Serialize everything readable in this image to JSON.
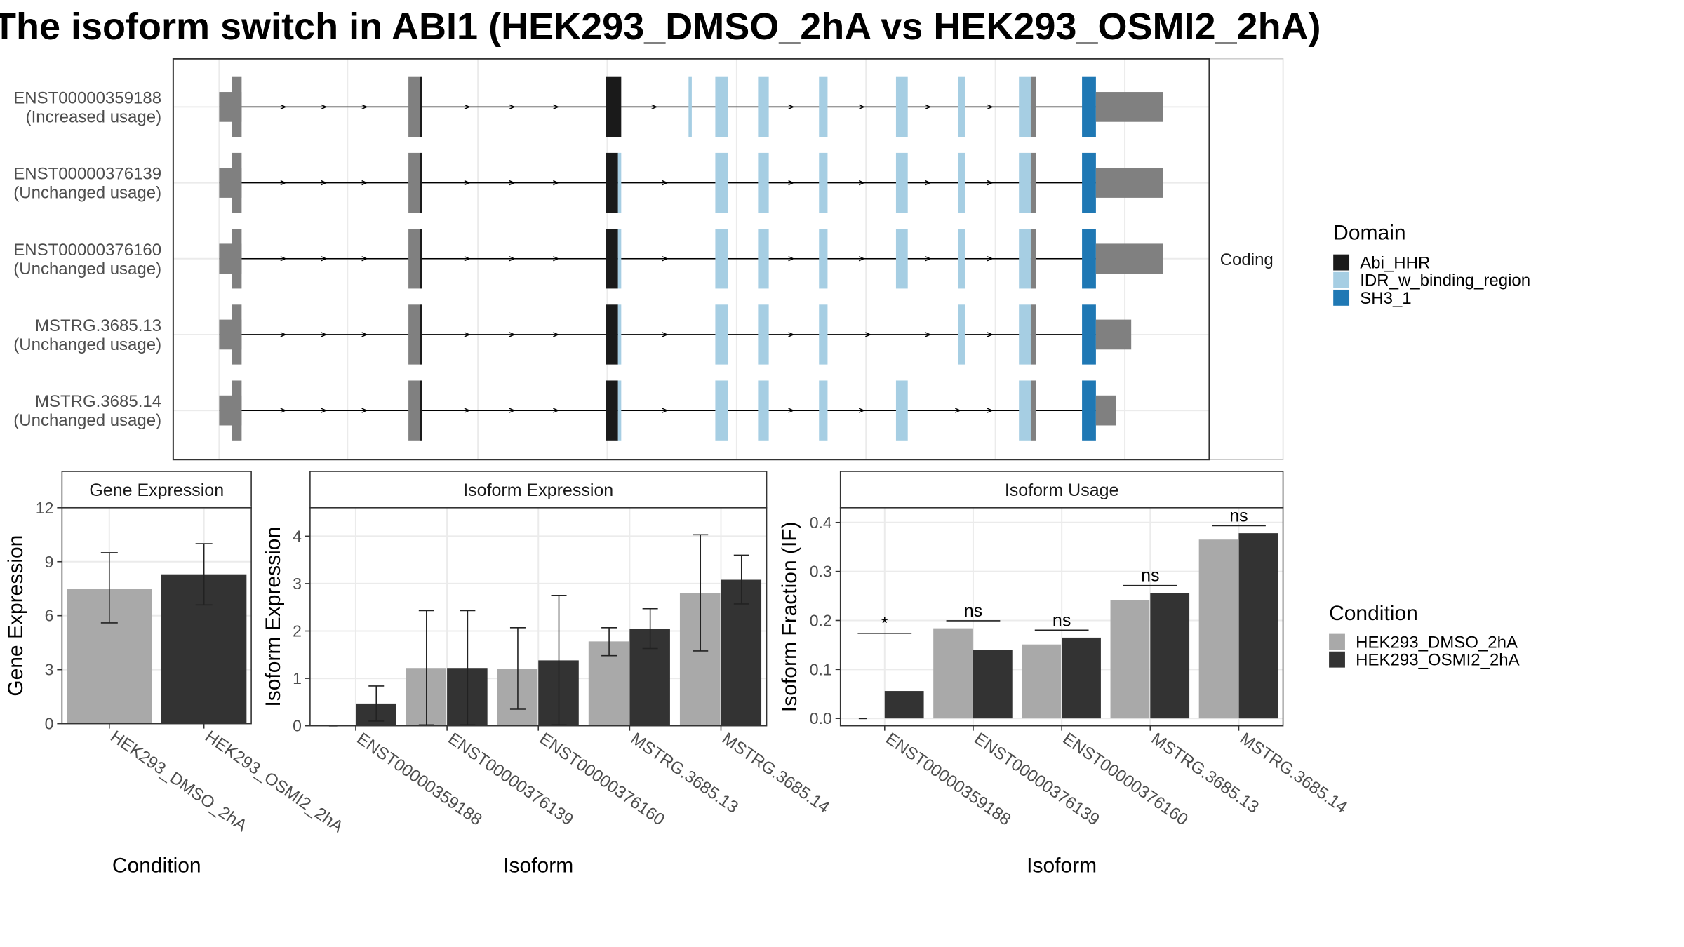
{
  "title": "The isoform switch in ABI1 (HEK293_DMSO_2hA vs HEK293_OSMI2_2hA)",
  "colors": {
    "dmso": "#a9a9a9",
    "osmi": "#333333",
    "abi_hhr": "#1a1a1a",
    "idr": "#a6cee3",
    "sh3": "#1f78b4",
    "utr": "#808080",
    "grid": "#ebebeb",
    "panel_border": "#333333",
    "strip_fill": "#ffffff"
  },
  "structure": {
    "facet_label": "Coding",
    "legend_title": "Domain",
    "legend_items": [
      {
        "label": "Abi_HHR",
        "color_key": "abi_hhr"
      },
      {
        "label": "IDR_w_binding_region",
        "color_key": "idr"
      },
      {
        "label": "SH3_1",
        "color_key": "sh3"
      }
    ],
    "transcripts": [
      {
        "id": "ENST00000359188",
        "usage": "(Increased usage)",
        "exons": [
          [
            205,
            226,
            "utr_stub"
          ],
          [
            217,
            226,
            "utr"
          ],
          [
            382,
            395,
            "abi_hhr_edge"
          ],
          [
            567,
            581,
            "abi_hhr"
          ],
          [
            644,
            647,
            "idr"
          ],
          [
            669,
            681,
            "idr"
          ],
          [
            709,
            719,
            "idr"
          ],
          [
            766,
            774,
            "idr"
          ],
          [
            838,
            849,
            "idr"
          ],
          [
            896,
            903,
            "idr"
          ],
          [
            953,
            969,
            "idr_edge"
          ],
          [
            1012,
            1025,
            "sh3"
          ],
          [
            1025,
            1088,
            "utr_tail"
          ]
        ],
        "arrows": [
          265,
          303,
          341,
          437,
          479,
          520,
          612,
          740,
          806,
          868,
          926
        ]
      },
      {
        "id": "ENST00000376139",
        "usage": "(Unchanged usage)",
        "exons": [
          [
            205,
            226,
            "utr_stub"
          ],
          [
            217,
            226,
            "utr"
          ],
          [
            382,
            395,
            "abi_hhr_edge"
          ],
          [
            567,
            581,
            "abi_hhr_idr"
          ],
          [
            669,
            681,
            "idr"
          ],
          [
            709,
            719,
            "idr"
          ],
          [
            766,
            774,
            "idr"
          ],
          [
            838,
            849,
            "idr"
          ],
          [
            896,
            903,
            "idr"
          ],
          [
            953,
            969,
            "idr_edge"
          ],
          [
            1012,
            1025,
            "sh3"
          ],
          [
            1025,
            1088,
            "utr_tail"
          ]
        ],
        "arrows": [
          265,
          303,
          341,
          437,
          479,
          520,
          622,
          740,
          806,
          868,
          926
        ]
      },
      {
        "id": "ENST00000376160",
        "usage": "(Unchanged usage)",
        "exons": [
          [
            205,
            226,
            "utr_stub"
          ],
          [
            217,
            226,
            "utr"
          ],
          [
            382,
            395,
            "abi_hhr_edge"
          ],
          [
            567,
            581,
            "abi_hhr_idr"
          ],
          [
            669,
            681,
            "idr"
          ],
          [
            709,
            719,
            "idr"
          ],
          [
            766,
            774,
            "idr"
          ],
          [
            838,
            849,
            "idr"
          ],
          [
            896,
            903,
            "idr"
          ],
          [
            953,
            969,
            "idr_edge"
          ],
          [
            1012,
            1025,
            "sh3"
          ],
          [
            1025,
            1088,
            "utr_tail"
          ]
        ],
        "arrows": [
          265,
          303,
          341,
          437,
          479,
          520,
          622,
          740,
          806,
          868,
          926
        ]
      },
      {
        "id": "MSTRG.3685.13",
        "usage": "(Unchanged usage)",
        "exons": [
          [
            205,
            226,
            "utr_stub"
          ],
          [
            217,
            226,
            "utr"
          ],
          [
            382,
            395,
            "abi_hhr_edge"
          ],
          [
            567,
            581,
            "abi_hhr_idr"
          ],
          [
            669,
            681,
            "idr"
          ],
          [
            709,
            719,
            "idr"
          ],
          [
            766,
            774,
            "idr"
          ],
          [
            896,
            903,
            "idr"
          ],
          [
            953,
            969,
            "idr_edge"
          ],
          [
            1012,
            1025,
            "sh3"
          ],
          [
            1025,
            1058,
            "utr_tail"
          ]
        ],
        "arrows": [
          265,
          303,
          341,
          437,
          479,
          520,
          622,
          740,
          812,
          868,
          926
        ]
      },
      {
        "id": "MSTRG.3685.14",
        "usage": "(Unchanged usage)",
        "exons": [
          [
            205,
            226,
            "utr_stub"
          ],
          [
            217,
            226,
            "utr"
          ],
          [
            382,
            395,
            "abi_hhr_edge"
          ],
          [
            567,
            581,
            "abi_hhr_idr"
          ],
          [
            669,
            681,
            "idr"
          ],
          [
            709,
            719,
            "idr"
          ],
          [
            766,
            774,
            "idr"
          ],
          [
            838,
            849,
            "idr"
          ],
          [
            953,
            969,
            "idr_edge"
          ],
          [
            1012,
            1025,
            "sh3"
          ],
          [
            1025,
            1044,
            "utr_tail"
          ]
        ],
        "arrows": [
          265,
          303,
          341,
          437,
          479,
          520,
          622,
          740,
          806,
          896,
          926
        ]
      }
    ]
  },
  "bottom_legend": {
    "title": "Condition",
    "items": [
      {
        "label": "HEK293_DMSO_2hA",
        "color_key": "dmso"
      },
      {
        "label": "HEK293_OSMI2_2hA",
        "color_key": "osmi"
      }
    ]
  },
  "chart_data": [
    {
      "type": "bar",
      "title": "Gene Expression",
      "xlabel": "Condition",
      "ylabel": "Gene Expression",
      "ylim": [
        0,
        12
      ],
      "yticks": [
        0,
        3,
        6,
        9,
        12
      ],
      "categories": [
        "HEK293_DMSO_2hA",
        "HEK293_OSMI2_2hA"
      ],
      "series": [
        {
          "values": [
            7.5,
            8.3
          ],
          "err_low": [
            5.6,
            6.6
          ],
          "err_high": [
            9.5,
            10.0
          ],
          "color_key": [
            "dmso",
            "osmi"
          ]
        }
      ]
    },
    {
      "type": "bar",
      "title": "Isoform Expression",
      "xlabel": "Isoform",
      "ylabel": "Isoform Expression",
      "ylim": [
        0,
        4.6
      ],
      "yticks": [
        0,
        1,
        2,
        3,
        4
      ],
      "categories": [
        "ENST00000359188",
        "ENST00000376139",
        "ENST00000376160",
        "MSTRG.3685.13",
        "MSTRG.3685.14"
      ],
      "series": [
        {
          "name": "HEK293_DMSO_2hA",
          "values": [
            0.0,
            1.22,
            1.2,
            1.78,
            2.8
          ],
          "err_low": [
            0.0,
            0.02,
            0.35,
            1.48,
            1.58
          ],
          "err_high": [
            0.0,
            2.43,
            2.07,
            2.07,
            4.03
          ]
        },
        {
          "name": "HEK293_OSMI2_2hA",
          "values": [
            0.47,
            1.22,
            1.38,
            2.05,
            3.08
          ],
          "err_low": [
            0.1,
            0.02,
            0.02,
            1.63,
            2.57
          ],
          "err_high": [
            0.84,
            2.43,
            2.75,
            2.47,
            3.6
          ]
        }
      ]
    },
    {
      "type": "bar",
      "title": "Isoform Usage",
      "xlabel": "Isoform",
      "ylabel": "Isoform Fraction (IF)",
      "ylim": [
        -0.015,
        0.43
      ],
      "yticks": [
        0.0,
        0.1,
        0.2,
        0.3,
        0.4
      ],
      "yticklabels": [
        "0.0",
        "0.1",
        "0.2",
        "0.3",
        "0.4"
      ],
      "categories": [
        "ENST00000359188",
        "ENST00000376139",
        "ENST00000376160",
        "MSTRG.3685.13",
        "MSTRG.3685.14"
      ],
      "series": [
        {
          "name": "HEK293_DMSO_2hA",
          "values": [
            0.0,
            0.184,
            0.151,
            0.242,
            0.365
          ]
        },
        {
          "name": "HEK293_OSMI2_2hA",
          "values": [
            0.056,
            0.14,
            0.165,
            0.256,
            0.378
          ]
        }
      ],
      "significance": [
        "*",
        "ns",
        "ns",
        "ns",
        "ns"
      ]
    }
  ]
}
